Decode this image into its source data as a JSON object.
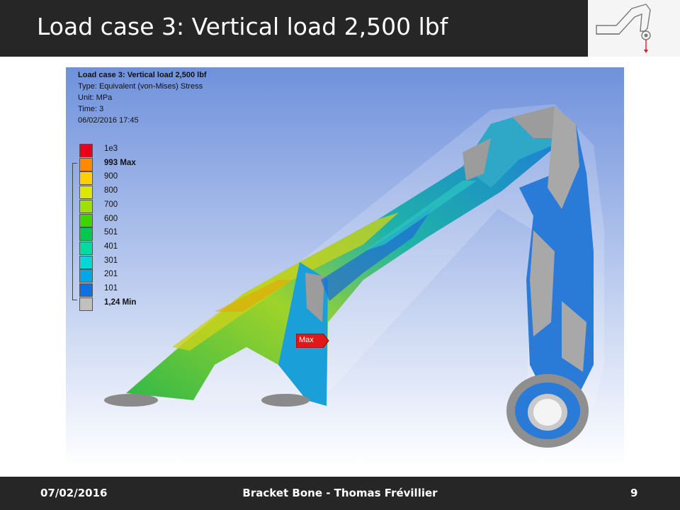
{
  "slide": {
    "title": "Load case 3: Vertical load 2,500 lbf"
  },
  "simulation": {
    "info_lines": [
      "Load case 3: Vertical load 2,500 lbf",
      "Type: Equivalent (von-Mises) Stress",
      "Unit: MPa",
      "Time: 3",
      "06/02/2016 17:45"
    ],
    "legend": {
      "entries": [
        {
          "label": "1e3",
          "color": "#e8001c"
        },
        {
          "label": "993 Max",
          "color": "#ff8a00"
        },
        {
          "label": "900",
          "color": "#ffd000"
        },
        {
          "label": "800",
          "color": "#dde800"
        },
        {
          "label": "700",
          "color": "#9fe000"
        },
        {
          "label": "600",
          "color": "#3ed400"
        },
        {
          "label": "501",
          "color": "#00c850"
        },
        {
          "label": "401",
          "color": "#00dca0"
        },
        {
          "label": "301",
          "color": "#00d8d8"
        },
        {
          "label": "201",
          "color": "#00a8e8"
        },
        {
          "label": "101",
          "color": "#1070e0"
        },
        {
          "label": "1,24 Min",
          "color": "#c0c0c0"
        }
      ]
    },
    "max_marker": "Max"
  },
  "footer": {
    "date": "07/02/2016",
    "center": "Bracket Bone - Thomas Frévillier",
    "page": "9"
  },
  "colors": {
    "header_bg": "#262626",
    "sim_bg_top": "#6f91dc",
    "sim_bg_bottom": "#ffffff"
  }
}
